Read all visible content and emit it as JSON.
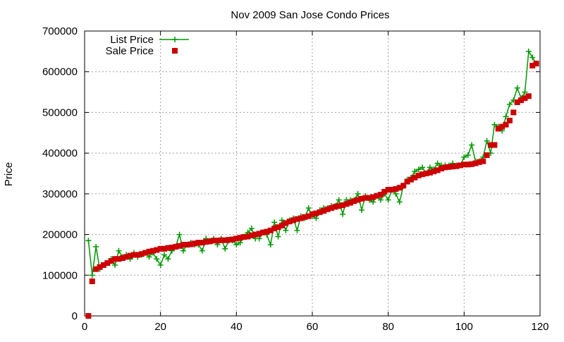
{
  "chart_data": {
    "type": "scatter",
    "title": "Nov 2009 San Jose Condo Prices",
    "xlabel": "",
    "ylabel": "Price",
    "xlim": [
      0,
      120
    ],
    "ylim": [
      0,
      700000
    ],
    "x_ticks": [
      0,
      20,
      40,
      60,
      80,
      100,
      120
    ],
    "y_ticks": [
      0,
      100000,
      200000,
      300000,
      400000,
      500000,
      600000,
      700000
    ],
    "grid": true,
    "legend_position": "top-left",
    "series": [
      {
        "name": "List Price",
        "style": "line+points",
        "marker": "plus",
        "color": "#009900",
        "x": [
          1,
          2,
          3,
          4,
          5,
          6,
          7,
          8,
          9,
          10,
          11,
          12,
          13,
          14,
          15,
          16,
          17,
          18,
          19,
          20,
          21,
          22,
          23,
          24,
          25,
          26,
          27,
          28,
          29,
          30,
          31,
          32,
          33,
          34,
          35,
          36,
          37,
          38,
          39,
          40,
          41,
          42,
          43,
          44,
          45,
          46,
          47,
          48,
          49,
          50,
          51,
          52,
          53,
          54,
          55,
          56,
          57,
          58,
          59,
          60,
          61,
          62,
          63,
          64,
          65,
          66,
          67,
          68,
          69,
          70,
          71,
          72,
          73,
          74,
          75,
          76,
          77,
          78,
          79,
          80,
          81,
          82,
          83,
          84,
          85,
          86,
          87,
          88,
          89,
          90,
          91,
          92,
          93,
          94,
          95,
          96,
          97,
          98,
          99,
          100,
          101,
          102,
          103,
          104,
          105,
          106,
          107,
          108,
          109,
          110,
          111,
          112,
          113,
          114,
          115,
          116,
          117,
          118,
          119
        ],
        "values": [
          185000,
          100000,
          170000,
          115000,
          125000,
          130000,
          140000,
          125000,
          160000,
          145000,
          150000,
          140000,
          155000,
          145000,
          150000,
          155000,
          145000,
          155000,
          140000,
          125000,
          150000,
          140000,
          160000,
          170000,
          200000,
          160000,
          175000,
          180000,
          175000,
          175000,
          160000,
          190000,
          185000,
          190000,
          175000,
          190000,
          165000,
          185000,
          185000,
          175000,
          180000,
          195000,
          205000,
          215000,
          190000,
          190000,
          205000,
          200000,
          175000,
          230000,
          195000,
          235000,
          210000,
          235000,
          240000,
          210000,
          245000,
          240000,
          265000,
          245000,
          240000,
          260000,
          265000,
          265000,
          270000,
          270000,
          285000,
          250000,
          285000,
          285000,
          285000,
          300000,
          260000,
          295000,
          285000,
          280000,
          295000,
          285000,
          300000,
          285000,
          310000,
          300000,
          280000,
          320000,
          335000,
          340000,
          355000,
          360000,
          365000,
          350000,
          365000,
          360000,
          375000,
          370000,
          370000,
          370000,
          375000,
          370000,
          370000,
          390000,
          395000,
          420000,
          380000,
          380000,
          390000,
          430000,
          400000,
          470000,
          465000,
          455000,
          490000,
          520000,
          530000,
          560000,
          535000,
          550000,
          650000,
          635000,
          620000
        ]
      },
      {
        "name": "Sale Price",
        "style": "points",
        "marker": "square",
        "color": "#cc0000",
        "x": [
          1,
          2,
          3,
          4,
          5,
          6,
          7,
          8,
          9,
          10,
          11,
          12,
          13,
          14,
          15,
          16,
          17,
          18,
          19,
          20,
          21,
          22,
          23,
          24,
          25,
          26,
          27,
          28,
          29,
          30,
          31,
          32,
          33,
          34,
          35,
          36,
          37,
          38,
          39,
          40,
          41,
          42,
          43,
          44,
          45,
          46,
          47,
          48,
          49,
          50,
          51,
          52,
          53,
          54,
          55,
          56,
          57,
          58,
          59,
          60,
          61,
          62,
          63,
          64,
          65,
          66,
          67,
          68,
          69,
          70,
          71,
          72,
          73,
          74,
          75,
          76,
          77,
          78,
          79,
          80,
          81,
          82,
          83,
          84,
          85,
          86,
          87,
          88,
          89,
          90,
          91,
          92,
          93,
          94,
          95,
          96,
          97,
          98,
          99,
          100,
          101,
          102,
          103,
          104,
          105,
          106,
          107,
          108,
          109,
          110,
          111,
          112,
          113,
          114,
          115,
          116,
          117,
          118,
          119
        ],
        "values": [
          0,
          85000,
          115000,
          120000,
          125000,
          130000,
          135000,
          140000,
          140000,
          142000,
          145000,
          148000,
          150000,
          150000,
          152000,
          155000,
          158000,
          160000,
          162000,
          165000,
          165000,
          167000,
          168000,
          170000,
          172000,
          175000,
          175000,
          176000,
          178000,
          180000,
          180000,
          182000,
          183000,
          185000,
          185000,
          186000,
          186000,
          187000,
          188000,
          190000,
          192000,
          194000,
          195000,
          198000,
          200000,
          202000,
          205000,
          207000,
          210000,
          215000,
          218000,
          222000,
          228000,
          232000,
          235000,
          238000,
          240000,
          243000,
          245000,
          250000,
          252000,
          255000,
          258000,
          262000,
          265000,
          268000,
          270000,
          272000,
          275000,
          278000,
          282000,
          285000,
          288000,
          290000,
          290000,
          292000,
          295000,
          298000,
          305000,
          310000,
          310000,
          312000,
          315000,
          320000,
          330000,
          335000,
          340000,
          345000,
          348000,
          350000,
          352000,
          355000,
          358000,
          362000,
          365000,
          366000,
          367000,
          368000,
          370000,
          372000,
          372000,
          373000,
          375000,
          378000,
          380000,
          395000,
          420000,
          420000,
          460000,
          465000,
          470000,
          480000,
          500000,
          525000,
          530000,
          535000,
          540000,
          615000,
          620000
        ]
      }
    ]
  }
}
